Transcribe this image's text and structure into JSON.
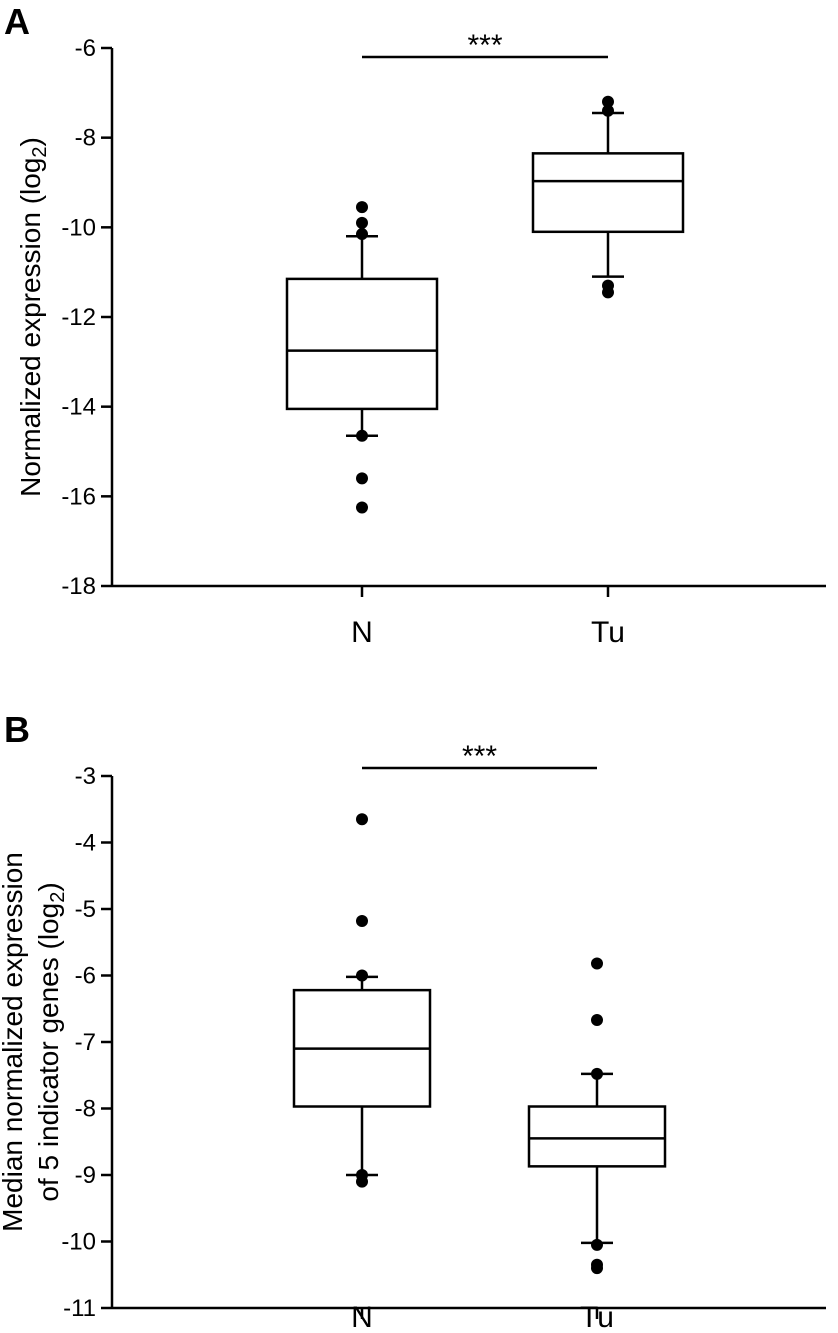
{
  "chart_data": [
    {
      "type": "box",
      "panel_label": "A",
      "ylabel_parts": [
        "Normalized expression (log",
        "2",
        ")"
      ],
      "ylim": [
        -18,
        -6
      ],
      "yticks": [
        -6,
        -8,
        -10,
        -12,
        -14,
        -16,
        -18
      ],
      "categories": [
        "N",
        "Tu"
      ],
      "significance": "***",
      "boxes": [
        {
          "category": "N",
          "whisker_low": -14.65,
          "q1": -14.05,
          "median": -12.75,
          "q3": -11.15,
          "whisker_high": -10.2,
          "outliers": [
            -9.55,
            -9.9,
            -10.15,
            -14.65,
            -15.6,
            -16.25
          ]
        },
        {
          "category": "Tu",
          "whisker_low": -11.1,
          "q1": -10.1,
          "median": -8.97,
          "q3": -8.35,
          "whisker_high": -7.45,
          "outliers": [
            -7.2,
            -7.4,
            -11.3,
            -11.45
          ]
        }
      ]
    },
    {
      "type": "box",
      "panel_label": "B",
      "ylabel_lines": [
        [
          "Median normalized expression"
        ],
        [
          "of 5 indicator genes (log",
          "2",
          ")"
        ]
      ],
      "ylim": [
        -11,
        -3
      ],
      "yticks": [
        -3,
        -4,
        -5,
        -6,
        -7,
        -8,
        -9,
        -10,
        -11
      ],
      "categories": [
        "N",
        "Tu"
      ],
      "significance": "***",
      "boxes": [
        {
          "category": "N",
          "whisker_low": -9.0,
          "q1": -7.97,
          "median": -7.1,
          "q3": -6.22,
          "whisker_high": -6.02,
          "outliers": [
            -3.65,
            -5.18,
            -6.0,
            -9.0,
            -9.1
          ]
        },
        {
          "category": "Tu",
          "whisker_low": -10.02,
          "q1": -8.87,
          "median": -8.45,
          "q3": -7.97,
          "whisker_high": -7.48,
          "outliers": [
            -5.82,
            -6.67,
            -7.48,
            -10.05,
            -10.35,
            -10.4
          ]
        }
      ]
    }
  ]
}
